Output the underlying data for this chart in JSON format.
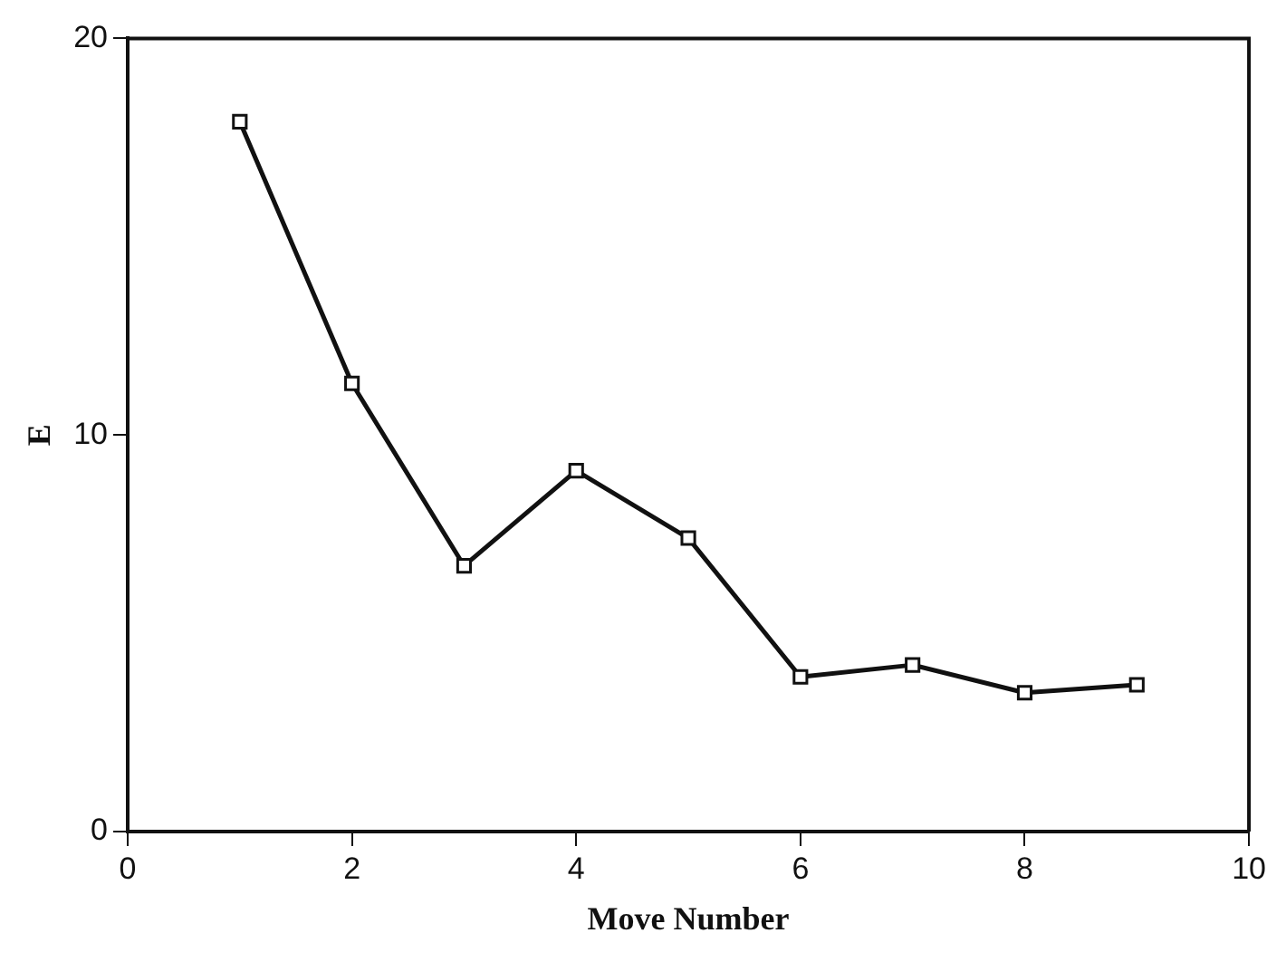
{
  "chart_data": {
    "type": "line",
    "xlabel": "Move Number",
    "ylabel": "E",
    "x": [
      1,
      2,
      3,
      4,
      5,
      6,
      7,
      8,
      9
    ],
    "series": [
      {
        "color": "#111111",
        "values": [
          17.9,
          11.3,
          6.7,
          9.1,
          7.4,
          3.9,
          4.2,
          3.5,
          3.7
        ]
      }
    ],
    "xlim": [
      0,
      10
    ],
    "xticks": [
      0,
      2,
      4,
      6,
      8,
      10
    ],
    "ylim": [
      0,
      20
    ],
    "yticks": [
      0,
      10,
      20
    ],
    "grid": false,
    "legend": false,
    "marker": "square",
    "line_style": "solid"
  }
}
